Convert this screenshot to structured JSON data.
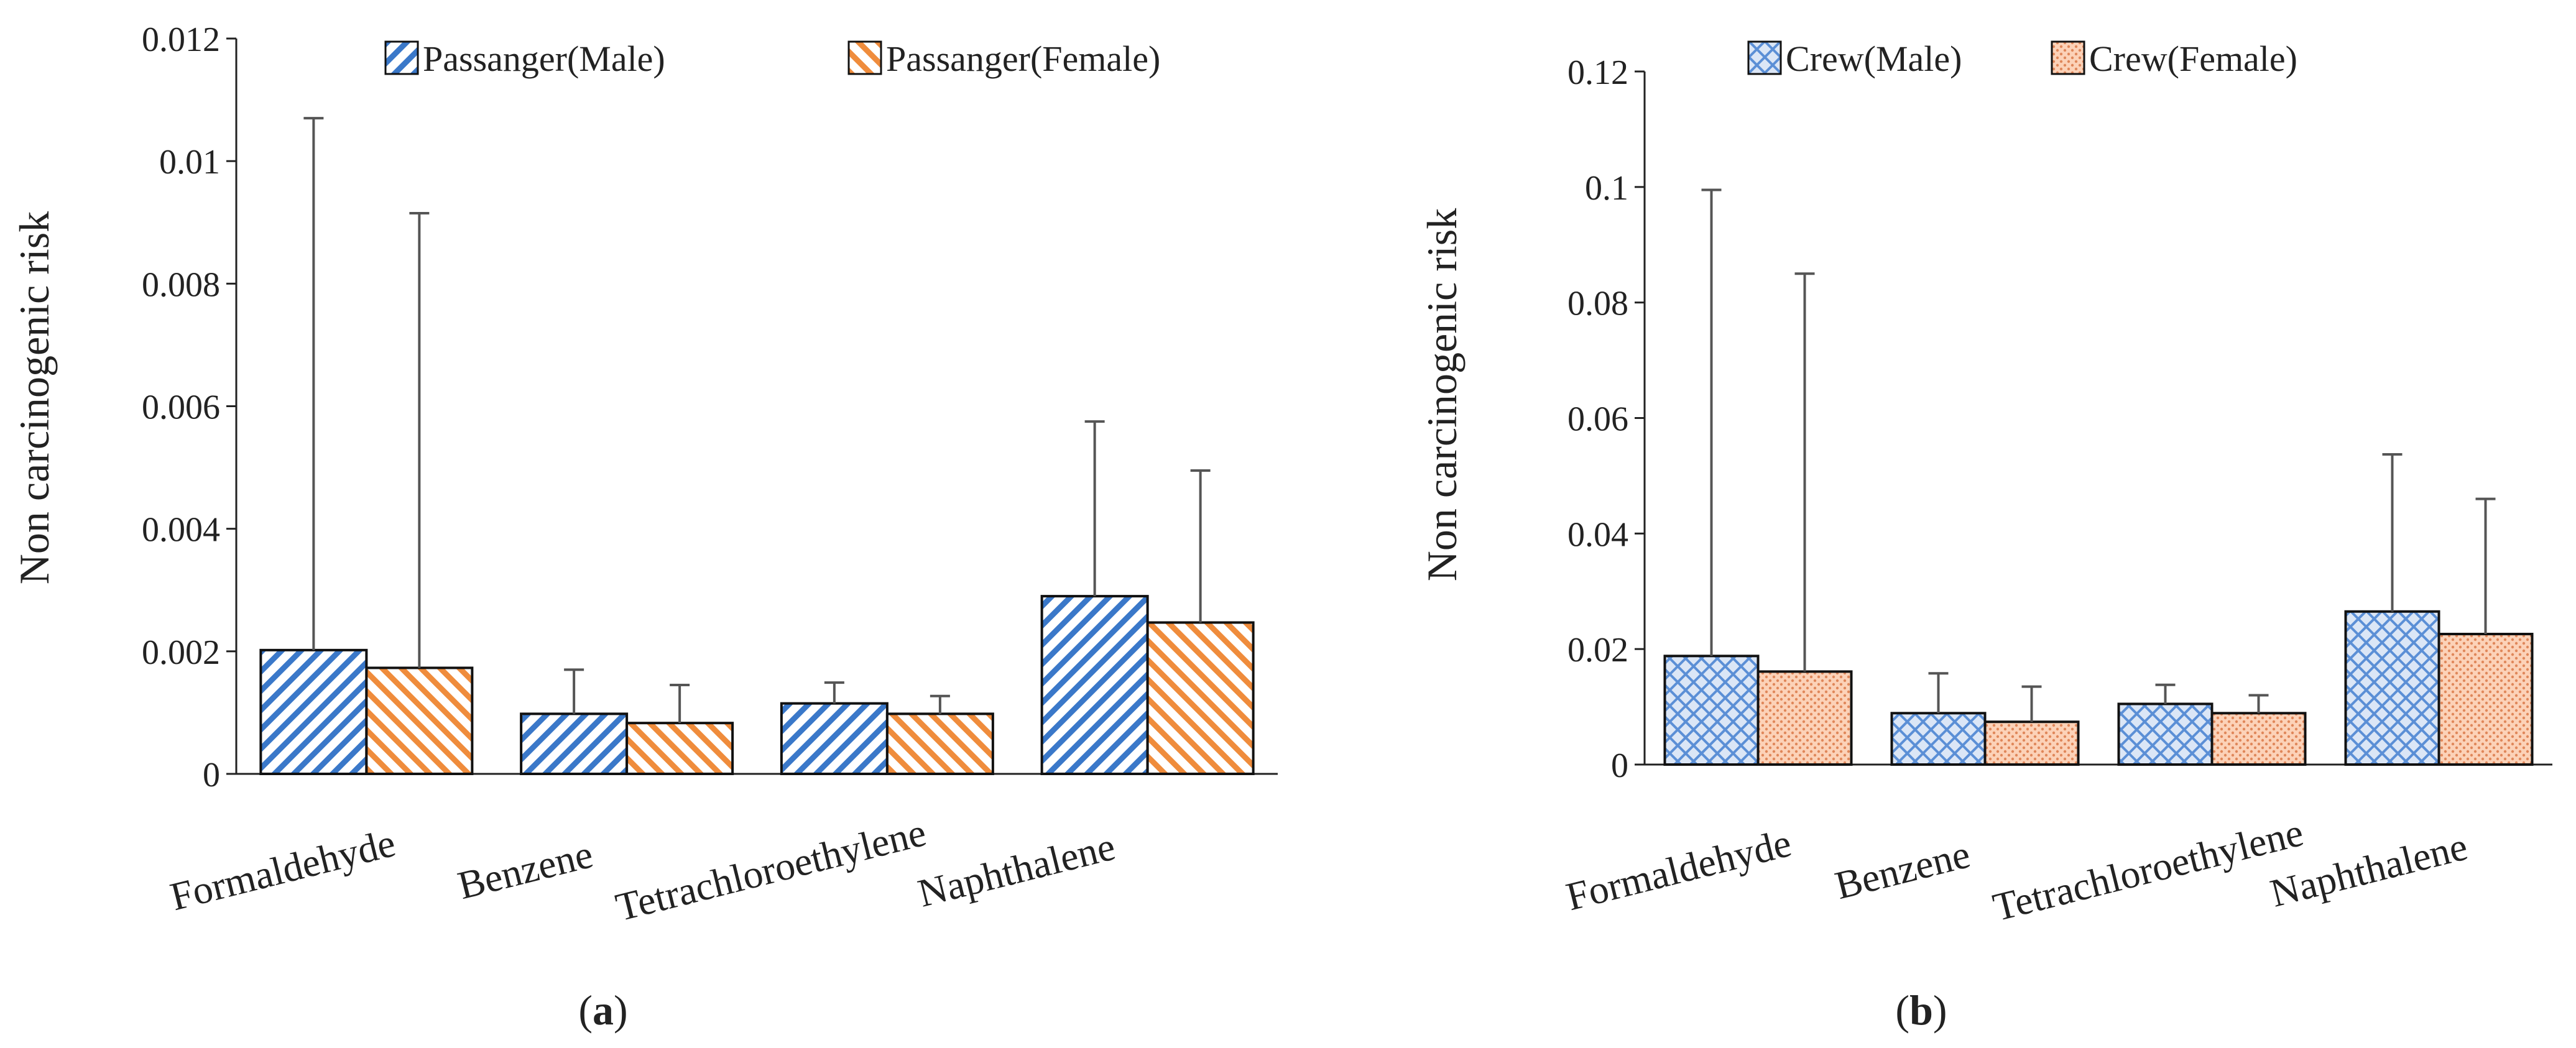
{
  "chart_data": [
    {
      "type": "bar",
      "panel_label": "(a)",
      "panel_letter": "a",
      "ylabel": "Non carcinogenic risk",
      "ylim": [
        0,
        0.012
      ],
      "yticks": [
        0,
        0.002,
        0.004,
        0.006,
        0.008,
        0.01,
        0.012
      ],
      "ytick_labels": [
        "0",
        "0.002",
        "0.004",
        "0.006",
        "0.008",
        "0.01",
        "0.012"
      ],
      "categories": [
        "Formaldehyde",
        "Benzene",
        "Tetrachloroethylene",
        "Naphthalene"
      ],
      "legend_position": "top",
      "grid": false,
      "series": [
        {
          "name": "Passanger(Male)",
          "values": [
            0.00202,
            0.00098,
            0.00115,
            0.0029
          ],
          "error_upper": [
            0.0107,
            0.0017,
            0.00149,
            0.00575
          ],
          "fill": "#ffffff",
          "pattern_color": "#3a78c9",
          "pattern": "diagonal-hatch"
        },
        {
          "name": "Passanger(Female)",
          "values": [
            0.00173,
            0.00083,
            0.00098,
            0.00247
          ],
          "error_upper": [
            0.00915,
            0.00145,
            0.00127,
            0.00495
          ],
          "fill": "#ffffff",
          "pattern_color": "#ef8c3c",
          "pattern": "diagonal-hatch"
        }
      ]
    },
    {
      "type": "bar",
      "panel_label": "(b)",
      "panel_letter": "b",
      "ylabel": "Non carcinogenic risk",
      "ylim": [
        0,
        0.12
      ],
      "yticks": [
        0,
        0.02,
        0.04,
        0.06,
        0.08,
        0.1,
        0.12
      ],
      "ytick_labels": [
        "0",
        "0.02",
        "0.04",
        "0.06",
        "0.08",
        "0.1",
        "0.12"
      ],
      "categories": [
        "Formaldehyde",
        "Benzene",
        "Tetrachloroethylene",
        "Naphthalene"
      ],
      "legend_position": "top",
      "grid": false,
      "series": [
        {
          "name": "Crew(Male)",
          "values": [
            0.0188,
            0.0089,
            0.0105,
            0.0265
          ],
          "error_upper": [
            0.0995,
            0.0158,
            0.0138,
            0.0537
          ],
          "fill": "#dbe6f6",
          "pattern_color": "#5b8fd6",
          "pattern": "crosshatch"
        },
        {
          "name": "Crew(Female)",
          "values": [
            0.0161,
            0.0074,
            0.0089,
            0.0226
          ],
          "error_upper": [
            0.085,
            0.0135,
            0.012,
            0.046
          ],
          "fill": "#fcd2b8",
          "pattern_color": "#e0875a",
          "pattern": "dotted"
        }
      ]
    }
  ],
  "colors": {
    "axis": "#222222",
    "bar_border": "#111111",
    "error_bar": "#555555"
  }
}
